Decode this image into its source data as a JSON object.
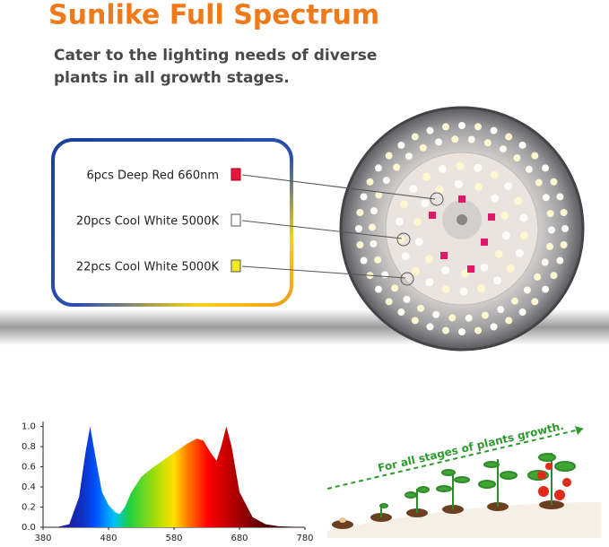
{
  "header": {
    "title": "Sunlike Full Spectrum",
    "subtitle_lines": [
      "Cater to the lighting needs of diverse",
      "plants in all growth stages."
    ]
  },
  "legend": {
    "items": [
      "6pcs Deep Red 660nm",
      "20pcs Cool White 5000K",
      "22pcs Cool White 5000K"
    ]
  },
  "chart_data": {
    "type": "area",
    "x": [
      380,
      400,
      420,
      435,
      445,
      452,
      460,
      470,
      480,
      490,
      497,
      505,
      515,
      530,
      545,
      560,
      580,
      600,
      615,
      625,
      635,
      645,
      652,
      660,
      668,
      680,
      700,
      720,
      740,
      780
    ],
    "values": [
      0,
      0,
      0.03,
      0.3,
      0.75,
      1.0,
      0.7,
      0.35,
      0.22,
      0.15,
      0.13,
      0.2,
      0.35,
      0.5,
      0.58,
      0.65,
      0.74,
      0.83,
      0.88,
      0.86,
      0.75,
      0.66,
      0.8,
      1.0,
      0.8,
      0.35,
      0.1,
      0.03,
      0.01,
      0
    ],
    "xlim": [
      380,
      780
    ],
    "ylim": [
      0,
      1.05
    ],
    "xticks": [
      380,
      480,
      580,
      680,
      780
    ],
    "yticks": [
      {
        "value": 0,
        "label": "0.0"
      },
      0.2,
      0.4,
      0.6,
      0.8,
      {
        "value": 1,
        "label": "1.0"
      }
    ]
  },
  "illustration": {
    "caption": "For all stages of plants growth."
  }
}
